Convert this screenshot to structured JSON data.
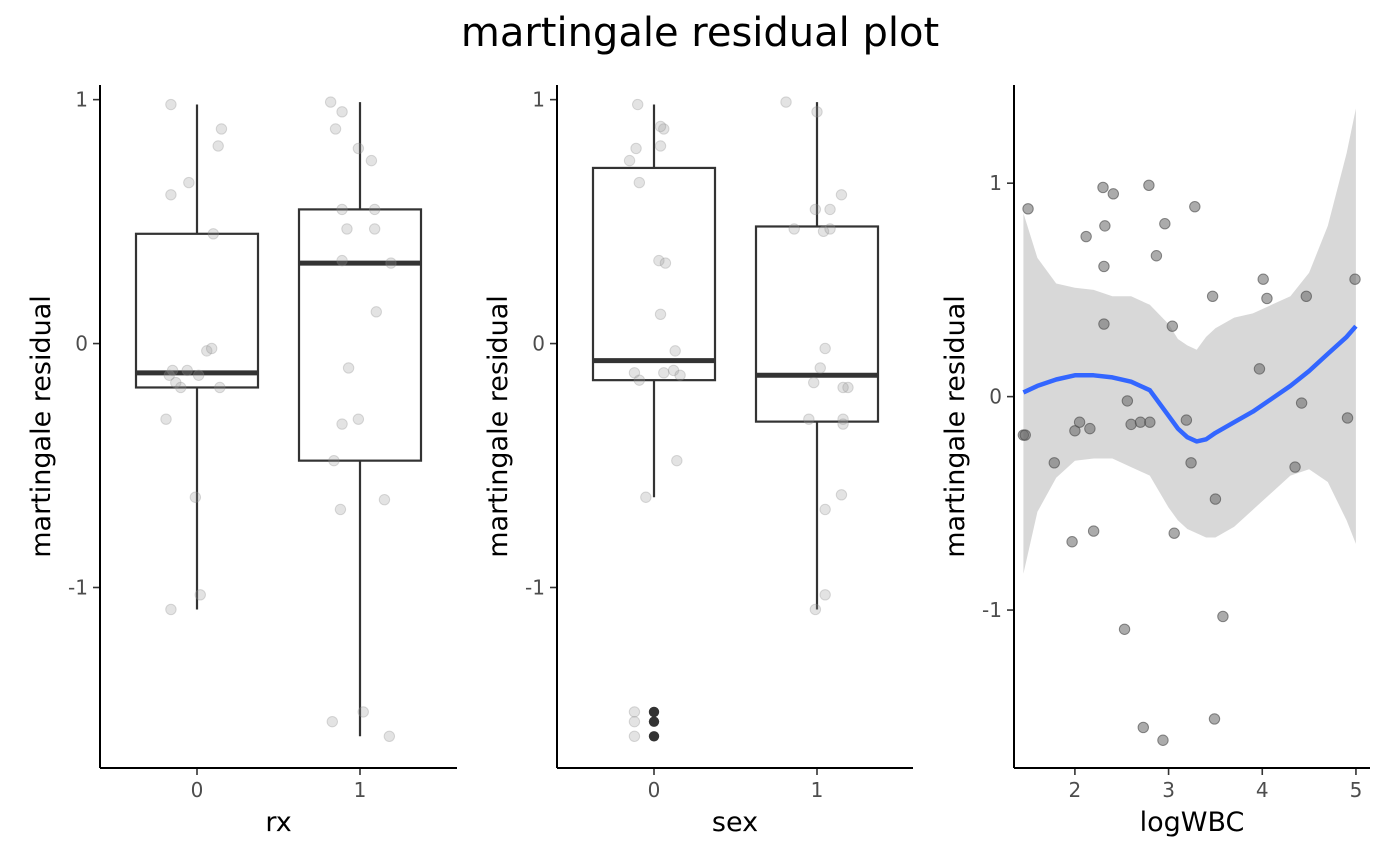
{
  "title": "martingale residual plot",
  "chart_data": [
    {
      "type": "boxplot",
      "xlabel": "rx",
      "ylabel": "martingale residual",
      "categories": [
        "0",
        "1"
      ],
      "ylim": [
        -1.74,
        1.06
      ],
      "yticks": [
        -1,
        0,
        1
      ],
      "boxes": [
        {
          "category": "0",
          "q1": -0.18,
          "median": -0.12,
          "q3": 0.45,
          "whisker_low": -1.09,
          "whisker_high": 0.98
        },
        {
          "category": "1",
          "q1": -0.48,
          "median": 0.33,
          "q3": 0.55,
          "whisker_low": -1.61,
          "whisker_high": 0.99
        }
      ],
      "outliers": [],
      "points": [
        {
          "x": -0.16,
          "y": 0.98
        },
        {
          "x": -0.16,
          "y": 0.61
        },
        {
          "x": -0.05,
          "y": 0.66
        },
        {
          "x": 0.15,
          "y": 0.88
        },
        {
          "x": 0.13,
          "y": 0.81
        },
        {
          "x": 0.1,
          "y": 0.45
        },
        {
          "x": 0.06,
          "y": -0.03
        },
        {
          "x": 0.09,
          "y": -0.02
        },
        {
          "x": -0.17,
          "y": -0.13
        },
        {
          "x": -0.15,
          "y": -0.11
        },
        {
          "x": -0.06,
          "y": -0.11
        },
        {
          "x": 0.01,
          "y": -0.13
        },
        {
          "x": -0.13,
          "y": -0.16
        },
        {
          "x": -0.1,
          "y": -0.18
        },
        {
          "x": 0.14,
          "y": -0.18
        },
        {
          "x": -0.19,
          "y": -0.31
        },
        {
          "x": -0.01,
          "y": -0.63
        },
        {
          "x": 0.02,
          "y": -1.03
        },
        {
          "x": -0.16,
          "y": -1.09
        },
        {
          "x": 0.82,
          "y": 0.99
        },
        {
          "x": 0.89,
          "y": 0.95
        },
        {
          "x": 0.85,
          "y": 0.88
        },
        {
          "x": 0.99,
          "y": 0.8
        },
        {
          "x": 1.07,
          "y": 0.75
        },
        {
          "x": 0.89,
          "y": 0.55
        },
        {
          "x": 1.09,
          "y": 0.55
        },
        {
          "x": 0.92,
          "y": 0.47
        },
        {
          "x": 1.09,
          "y": 0.47
        },
        {
          "x": 0.89,
          "y": 0.34
        },
        {
          "x": 1.19,
          "y": 0.33
        },
        {
          "x": 1.1,
          "y": 0.13
        },
        {
          "x": 0.93,
          "y": -0.1
        },
        {
          "x": 0.89,
          "y": -0.33
        },
        {
          "x": 0.99,
          "y": -0.31
        },
        {
          "x": 0.84,
          "y": -0.48
        },
        {
          "x": 0.88,
          "y": -0.68
        },
        {
          "x": 1.15,
          "y": -0.64
        },
        {
          "x": 1.02,
          "y": -1.51
        },
        {
          "x": 0.83,
          "y": -1.55
        },
        {
          "x": 1.18,
          "y": -1.61
        }
      ]
    },
    {
      "type": "boxplot",
      "xlabel": "sex",
      "ylabel": "martingale residual",
      "categories": [
        "0",
        "1"
      ],
      "ylim": [
        -1.74,
        1.06
      ],
      "yticks": [
        -1,
        0,
        1
      ],
      "boxes": [
        {
          "category": "0",
          "q1": -0.15,
          "median": -0.07,
          "q3": 0.72,
          "whisker_low": -0.63,
          "whisker_high": 0.98
        },
        {
          "category": "1",
          "q1": -0.32,
          "median": -0.13,
          "q3": 0.48,
          "whisker_low": -1.09,
          "whisker_high": 0.99
        }
      ],
      "outliers": [
        {
          "category": "0",
          "y": -1.51
        },
        {
          "category": "0",
          "y": -1.55
        },
        {
          "category": "0",
          "y": -1.61
        }
      ],
      "points": [
        {
          "x": -0.1,
          "y": 0.98
        },
        {
          "x": 0.06,
          "y": 0.88
        },
        {
          "x": 0.04,
          "y": 0.89
        },
        {
          "x": -0.11,
          "y": 0.8
        },
        {
          "x": 0.04,
          "y": 0.81
        },
        {
          "x": -0.15,
          "y": 0.75
        },
        {
          "x": -0.09,
          "y": 0.66
        },
        {
          "x": 0.03,
          "y": 0.34
        },
        {
          "x": 0.07,
          "y": 0.33
        },
        {
          "x": 0.04,
          "y": 0.12
        },
        {
          "x": 0.13,
          "y": -0.03
        },
        {
          "x": -0.12,
          "y": -0.12
        },
        {
          "x": 0.12,
          "y": -0.11
        },
        {
          "x": 0.16,
          "y": -0.13
        },
        {
          "x": 0.06,
          "y": -0.12
        },
        {
          "x": -0.09,
          "y": -0.15
        },
        {
          "x": 0.14,
          "y": -0.48
        },
        {
          "x": -0.05,
          "y": -0.63
        },
        {
          "x": -0.12,
          "y": -1.51
        },
        {
          "x": -0.12,
          "y": -1.55
        },
        {
          "x": -0.12,
          "y": -1.61
        },
        {
          "x": 0.81,
          "y": 0.99
        },
        {
          "x": 1.0,
          "y": 0.95
        },
        {
          "x": 1.15,
          "y": 0.61
        },
        {
          "x": 0.99,
          "y": 0.55
        },
        {
          "x": 1.08,
          "y": 0.55
        },
        {
          "x": 0.86,
          "y": 0.47
        },
        {
          "x": 1.04,
          "y": 0.46
        },
        {
          "x": 1.08,
          "y": 0.47
        },
        {
          "x": 1.05,
          "y": -0.02
        },
        {
          "x": 1.02,
          "y": -0.1
        },
        {
          "x": 0.98,
          "y": -0.16
        },
        {
          "x": 1.19,
          "y": -0.18
        },
        {
          "x": 1.16,
          "y": -0.18
        },
        {
          "x": 0.95,
          "y": -0.31
        },
        {
          "x": 1.16,
          "y": -0.31
        },
        {
          "x": 1.16,
          "y": -0.33
        },
        {
          "x": 1.15,
          "y": -0.62
        },
        {
          "x": 1.05,
          "y": -0.68
        },
        {
          "x": 1.05,
          "y": -1.03
        },
        {
          "x": 0.99,
          "y": -1.09
        }
      ]
    },
    {
      "type": "scatter",
      "xlabel": "logWBC",
      "ylabel": "martingale residual",
      "xlim": [
        1.35,
        5.15
      ],
      "ylim": [
        -1.74,
        1.46
      ],
      "xticks": [
        2,
        3,
        4,
        5
      ],
      "yticks": [
        -1,
        0,
        1
      ],
      "points": [
        {
          "x": 1.45,
          "y": -0.18
        },
        {
          "x": 1.47,
          "y": -0.18
        },
        {
          "x": 1.5,
          "y": 0.88
        },
        {
          "x": 1.78,
          "y": -0.31
        },
        {
          "x": 1.97,
          "y": -0.68
        },
        {
          "x": 2.0,
          "y": -0.16
        },
        {
          "x": 2.05,
          "y": -0.12
        },
        {
          "x": 2.12,
          "y": 0.75
        },
        {
          "x": 2.16,
          "y": -0.15
        },
        {
          "x": 2.2,
          "y": -0.63
        },
        {
          "x": 2.3,
          "y": 0.98
        },
        {
          "x": 2.31,
          "y": 0.61
        },
        {
          "x": 2.31,
          "y": 0.34
        },
        {
          "x": 2.32,
          "y": 0.8
        },
        {
          "x": 2.41,
          "y": 0.95
        },
        {
          "x": 2.53,
          "y": -1.09
        },
        {
          "x": 2.56,
          "y": -0.02
        },
        {
          "x": 2.6,
          "y": -0.13
        },
        {
          "x": 2.7,
          "y": -0.12
        },
        {
          "x": 2.73,
          "y": -1.55
        },
        {
          "x": 2.79,
          "y": 0.99
        },
        {
          "x": 2.8,
          "y": -0.12
        },
        {
          "x": 2.87,
          "y": 0.66
        },
        {
          "x": 2.94,
          "y": -1.61
        },
        {
          "x": 2.96,
          "y": 0.81
        },
        {
          "x": 3.04,
          "y": 0.33
        },
        {
          "x": 3.06,
          "y": -0.64
        },
        {
          "x": 3.19,
          "y": -0.11
        },
        {
          "x": 3.24,
          "y": -0.31
        },
        {
          "x": 3.28,
          "y": 0.89
        },
        {
          "x": 3.47,
          "y": 0.47
        },
        {
          "x": 3.49,
          "y": -1.51
        },
        {
          "x": 3.5,
          "y": -0.48
        },
        {
          "x": 3.58,
          "y": -1.03
        },
        {
          "x": 3.97,
          "y": 0.13
        },
        {
          "x": 4.01,
          "y": 0.55
        },
        {
          "x": 4.05,
          "y": 0.46
        },
        {
          "x": 4.35,
          "y": -0.33
        },
        {
          "x": 4.42,
          "y": -0.03
        },
        {
          "x": 4.47,
          "y": 0.47
        },
        {
          "x": 4.91,
          "y": -0.1
        },
        {
          "x": 4.99,
          "y": 0.55
        }
      ],
      "smooth": {
        "color": "#3366ff",
        "x": [
          1.45,
          1.6,
          1.8,
          2.0,
          2.2,
          2.4,
          2.6,
          2.8,
          3.0,
          3.1,
          3.2,
          3.3,
          3.4,
          3.5,
          3.7,
          3.9,
          4.1,
          4.3,
          4.5,
          4.7,
          4.9,
          5.0
        ],
        "y": [
          0.02,
          0.05,
          0.08,
          0.1,
          0.1,
          0.09,
          0.07,
          0.03,
          -0.09,
          -0.15,
          -0.19,
          -0.21,
          -0.2,
          -0.17,
          -0.12,
          -0.07,
          -0.01,
          0.05,
          0.12,
          0.2,
          0.28,
          0.33
        ],
        "ci_upper": [
          0.86,
          0.65,
          0.53,
          0.51,
          0.5,
          0.47,
          0.47,
          0.43,
          0.34,
          0.27,
          0.24,
          0.22,
          0.28,
          0.32,
          0.37,
          0.39,
          0.43,
          0.47,
          0.58,
          0.8,
          1.14,
          1.35
        ],
        "ci_lower": [
          -0.83,
          -0.54,
          -0.38,
          -0.3,
          -0.29,
          -0.29,
          -0.33,
          -0.37,
          -0.52,
          -0.58,
          -0.62,
          -0.64,
          -0.66,
          -0.66,
          -0.61,
          -0.53,
          -0.45,
          -0.37,
          -0.34,
          -0.4,
          -0.58,
          -0.69
        ]
      }
    }
  ]
}
